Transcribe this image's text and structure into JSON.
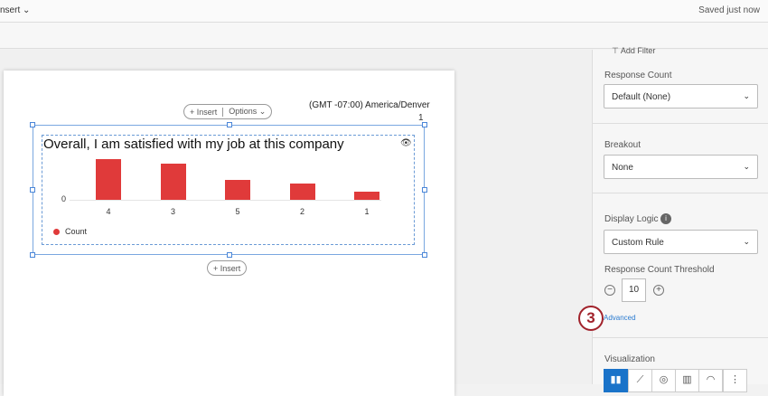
{
  "topbar": {
    "insert": "nsert ⌄",
    "saved": "Saved just now"
  },
  "page": {
    "timezone": "(GMT -07:00) America/Denver",
    "page_number": "1",
    "insert": "+ Insert",
    "options": "Options ⌄",
    "insert_below": "+ Insert"
  },
  "chart_data": {
    "type": "bar",
    "title": "Overall, I am satisfied with my job at this company",
    "categories": [
      "4",
      "3",
      "5",
      "2",
      "1"
    ],
    "values": [
      45,
      40,
      22,
      18,
      9
    ],
    "y_tick_labels": [
      "0"
    ],
    "legend": "Count",
    "legend_position": "bottom-left",
    "color": "#e03a3a",
    "series": [
      {
        "name": "Count",
        "values": [
          45,
          40,
          22,
          18,
          9
        ]
      }
    ]
  },
  "sidebar": {
    "add_filter": "⊤ Add Filter",
    "response_count_label": "Response Count",
    "response_count_value": "Default (None)",
    "breakout_label": "Breakout",
    "breakout_value": "None",
    "display_logic_label": "Display Logic",
    "display_logic_value": "Custom Rule",
    "threshold_label": "Response Count Threshold",
    "threshold_value": "10",
    "advanced": "Advanced",
    "visualization_label": "Visualization",
    "step": "3"
  }
}
